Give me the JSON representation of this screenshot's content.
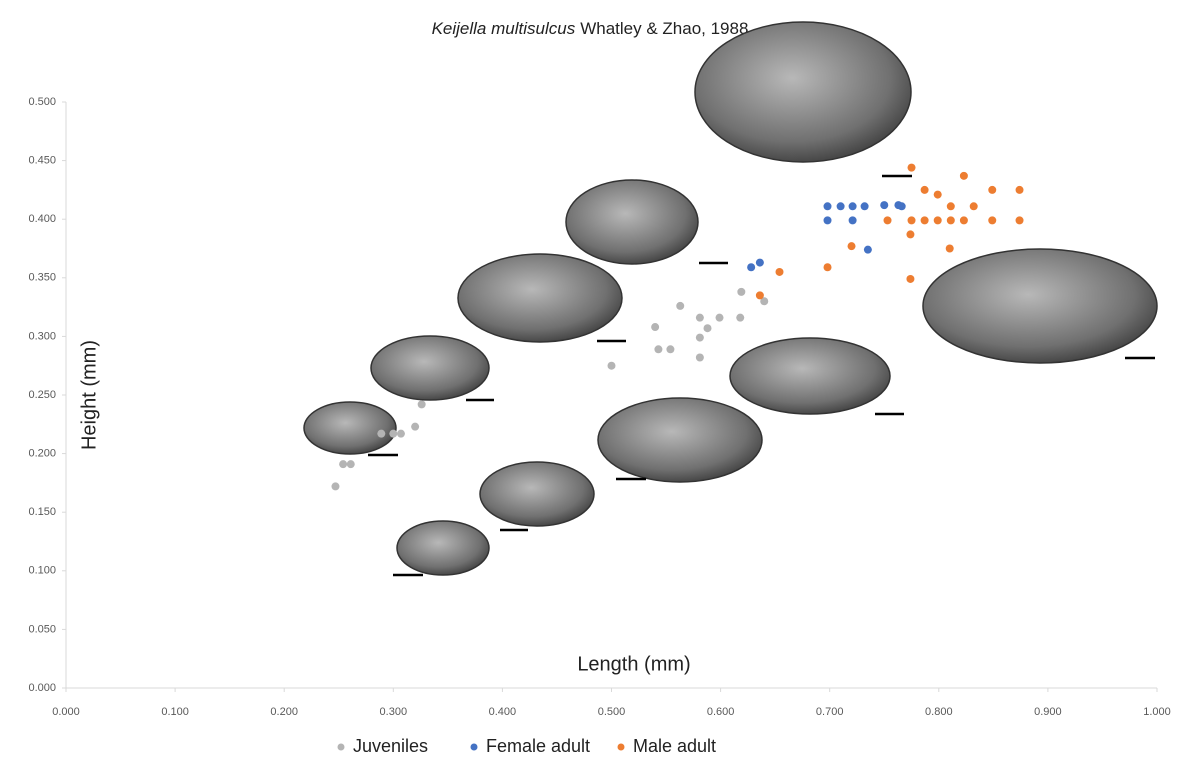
{
  "chart_data": {
    "type": "scatter",
    "title": {
      "species": "Keijella multisulcus",
      "authority": "Whatley & Zhao, 1988"
    },
    "x_label": "Length (mm)",
    "y_label": "Height (mm)",
    "xlim": [
      0,
      1
    ],
    "ylim": [
      0,
      0.5
    ],
    "xticks": [
      {
        "value": 0,
        "label": "0.000"
      },
      {
        "value": 0.1,
        "label": "0.100"
      },
      {
        "value": 0.2,
        "label": "0.200"
      },
      {
        "value": 0.3,
        "label": "0.300"
      },
      {
        "value": 0.4,
        "label": "0.400"
      },
      {
        "value": 0.5,
        "label": "0.500"
      },
      {
        "value": 0.6,
        "label": "0.600"
      },
      {
        "value": 0.7,
        "label": "0.700"
      },
      {
        "value": 0.8,
        "label": "0.800"
      },
      {
        "value": 0.9,
        "label": "0.900"
      },
      {
        "value": 1,
        "label": "1.000"
      }
    ],
    "yticks": [
      {
        "value": 0,
        "label": "0.000"
      },
      {
        "value": 0.05,
        "label": "0.050"
      },
      {
        "value": 0.1,
        "label": "0.100"
      },
      {
        "value": 0.15,
        "label": "0.150"
      },
      {
        "value": 0.2,
        "label": "0.200"
      },
      {
        "value": 0.25,
        "label": "0.250"
      },
      {
        "value": 0.3,
        "label": "0.300"
      },
      {
        "value": 0.35,
        "label": "0.350"
      },
      {
        "value": 0.4,
        "label": "0.400"
      },
      {
        "value": 0.45,
        "label": "0.450"
      },
      {
        "value": 0.5,
        "label": "0.500"
      }
    ],
    "legend": "bottom",
    "series": [
      {
        "name": "Juveniles",
        "color": "#b4b4b4",
        "x": [
          0.247,
          0.254,
          0.261,
          0.289,
          0.3,
          0.307,
          0.32,
          0.326,
          0.5,
          0.54,
          0.543,
          0.554,
          0.563,
          0.581,
          0.581,
          0.581,
          0.588,
          0.599,
          0.618,
          0.619,
          0.64
        ],
        "values": [
          0.172,
          0.191,
          0.191,
          0.217,
          0.217,
          0.217,
          0.223,
          0.242,
          0.275,
          0.308,
          0.289,
          0.289,
          0.326,
          0.316,
          0.299,
          0.282,
          0.307,
          0.316,
          0.316,
          0.338,
          0.33
        ]
      },
      {
        "name": "Female adult",
        "color": "#4472c4",
        "x": [
          0.698,
          0.71,
          0.721,
          0.732,
          0.75,
          0.763,
          0.766,
          0.698,
          0.721,
          0.735,
          0.628,
          0.636
        ],
        "values": [
          0.411,
          0.411,
          0.411,
          0.411,
          0.412,
          0.412,
          0.411,
          0.399,
          0.399,
          0.374,
          0.359,
          0.363
        ]
      },
      {
        "name": "Male adult",
        "color": "#ed7d31",
        "x": [
          0.775,
          0.787,
          0.799,
          0.823,
          0.849,
          0.874,
          0.753,
          0.775,
          0.787,
          0.799,
          0.811,
          0.823,
          0.849,
          0.874,
          0.811,
          0.832,
          0.774,
          0.72,
          0.81,
          0.698,
          0.654,
          0.636,
          0.774
        ],
        "values": [
          0.444,
          0.425,
          0.421,
          0.437,
          0.425,
          0.425,
          0.399,
          0.399,
          0.399,
          0.399,
          0.399,
          0.399,
          0.399,
          0.399,
          0.411,
          0.411,
          0.387,
          0.377,
          0.375,
          0.359,
          0.355,
          0.335,
          0.349
        ]
      }
    ]
  }
}
